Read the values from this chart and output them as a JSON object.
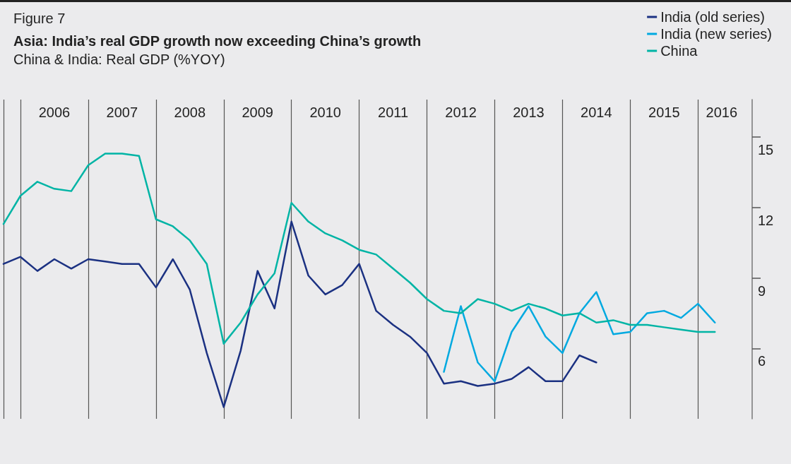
{
  "chart_data": {
    "type": "line",
    "title": "Asia: India’s real GDP growth now exceeding China’s growth",
    "subtitle": "China & India: Real GDP (%YOY)",
    "annotations": [
      "Figure 7"
    ],
    "xlim": [
      2005.75,
      2016.8
    ],
    "xticks": [
      {
        "value": 2005.75,
        "label": null
      },
      {
        "value": 2006,
        "label": null
      },
      {
        "value": 2006.5,
        "label": "2006"
      },
      {
        "value": 2007,
        "label": null
      },
      {
        "value": 2007.5,
        "label": "2007"
      },
      {
        "value": 2008,
        "label": null
      },
      {
        "value": 2008.5,
        "label": "2008"
      },
      {
        "value": 2009,
        "label": null
      },
      {
        "value": 2009.5,
        "label": "2009"
      },
      {
        "value": 2010,
        "label": null
      },
      {
        "value": 2010.5,
        "label": "2010"
      },
      {
        "value": 2011,
        "label": null
      },
      {
        "value": 2011.5,
        "label": "2011"
      },
      {
        "value": 2012,
        "label": null
      },
      {
        "value": 2012.5,
        "label": "2012"
      },
      {
        "value": 2013,
        "label": null
      },
      {
        "value": 2013.5,
        "label": "2013"
      },
      {
        "value": 2014,
        "label": null
      },
      {
        "value": 2014.5,
        "label": "2014"
      },
      {
        "value": 2015,
        "label": null
      },
      {
        "value": 2015.5,
        "label": "2015"
      },
      {
        "value": 2016,
        "label": null
      },
      {
        "value": 2016.35,
        "label": "2016"
      }
    ],
    "ylim": [
      3,
      16.6
    ],
    "yticks": [
      6,
      9,
      12,
      15
    ],
    "grid": "x",
    "legend": "top right",
    "series": [
      {
        "name": "India (old series)",
        "color": "#1b3182",
        "x": [
          2005.75,
          2006,
          2006.25,
          2006.5,
          2006.75,
          2007,
          2007.25,
          2007.5,
          2007.75,
          2008,
          2008.25,
          2008.5,
          2008.75,
          2009,
          2009.25,
          2009.5,
          2009.75,
          2010,
          2010.25,
          2010.5,
          2010.75,
          2011,
          2011.25,
          2011.5,
          2011.75,
          2012,
          2012.25,
          2012.5,
          2012.75,
          2013,
          2013.25,
          2013.5,
          2013.75,
          2014,
          2014.25,
          2014.5
        ],
        "values": [
          9.6,
          9.9,
          9.3,
          9.8,
          9.4,
          9.8,
          9.7,
          9.6,
          9.6,
          8.6,
          9.8,
          8.5,
          5.8,
          3.5,
          5.9,
          9.3,
          7.7,
          11.4,
          9.1,
          8.3,
          8.7,
          9.6,
          7.6,
          7.0,
          6.5,
          5.8,
          4.5,
          4.6,
          4.4,
          4.5,
          4.7,
          5.2,
          4.6,
          4.6,
          5.7,
          5.4
        ]
      },
      {
        "name": "India (new series)",
        "color": "#00a9e0",
        "x": [
          2012.25,
          2012.5,
          2012.75,
          2013,
          2013.25,
          2013.5,
          2013.75,
          2014,
          2014.25,
          2014.5,
          2014.75,
          2015,
          2015.25,
          2015.5,
          2015.75,
          2016,
          2016.25
        ],
        "values": [
          5.0,
          7.8,
          5.4,
          4.6,
          6.7,
          7.8,
          6.5,
          5.8,
          7.5,
          8.4,
          6.6,
          6.7,
          7.5,
          7.6,
          7.3,
          7.9,
          7.1
        ]
      },
      {
        "name": "China",
        "color": "#00b4a5",
        "x": [
          2005.75,
          2006,
          2006.25,
          2006.5,
          2006.75,
          2007,
          2007.25,
          2007.5,
          2007.75,
          2008,
          2008.25,
          2008.5,
          2008.75,
          2009,
          2009.25,
          2009.5,
          2009.75,
          2010,
          2010.25,
          2010.5,
          2010.75,
          2011,
          2011.25,
          2011.5,
          2011.75,
          2012,
          2012.25,
          2012.5,
          2012.75,
          2013,
          2013.25,
          2013.5,
          2013.75,
          2014,
          2014.25,
          2014.5,
          2014.75,
          2015,
          2015.25,
          2015.5,
          2015.75,
          2016,
          2016.25
        ],
        "values": [
          11.3,
          12.5,
          13.1,
          12.8,
          12.7,
          13.8,
          14.3,
          14.3,
          14.2,
          11.5,
          11.2,
          10.6,
          9.6,
          6.2,
          7.1,
          8.3,
          9.2,
          12.2,
          11.4,
          10.9,
          10.6,
          10.2,
          10.0,
          9.4,
          8.8,
          8.1,
          7.6,
          7.5,
          8.1,
          7.9,
          7.6,
          7.9,
          7.7,
          7.4,
          7.5,
          7.1,
          7.2,
          7.0,
          7.0,
          6.9,
          6.8,
          6.7,
          6.7
        ]
      }
    ]
  }
}
